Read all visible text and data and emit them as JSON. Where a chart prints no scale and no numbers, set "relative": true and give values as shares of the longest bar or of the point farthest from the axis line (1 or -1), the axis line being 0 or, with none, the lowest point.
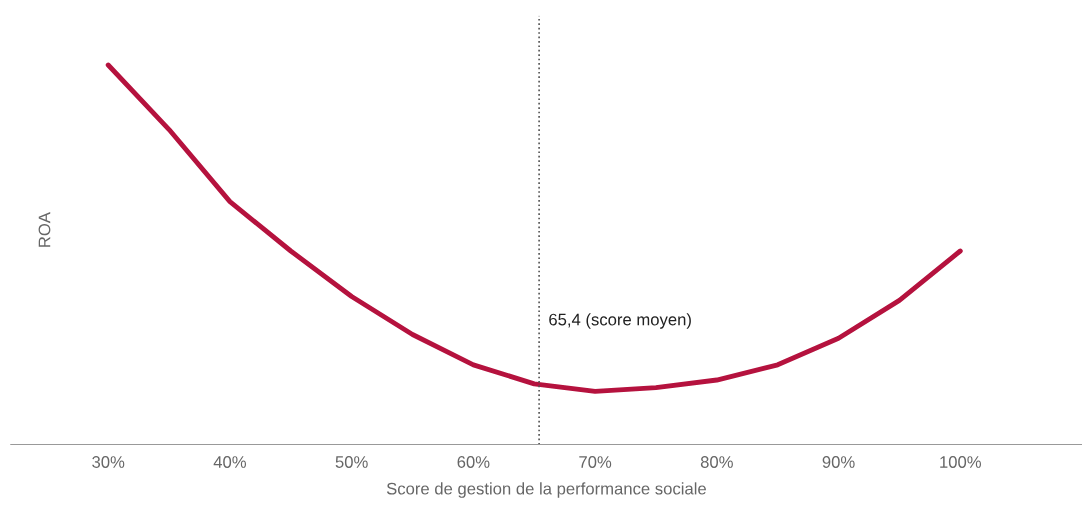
{
  "chart_data": {
    "type": "line",
    "relative": true,
    "xlabel": "Score de gestion de la performance sociale",
    "ylabel": "ROA",
    "x": [
      30,
      35,
      40,
      45,
      50,
      55,
      60,
      65,
      70,
      75,
      80,
      85,
      90,
      95,
      100
    ],
    "series": [
      {
        "color": "#b5123e",
        "values": [
          1.0,
          0.83,
          0.64,
          0.51,
          0.39,
          0.29,
          0.21,
          0.16,
          0.14,
          0.15,
          0.17,
          0.21,
          0.28,
          0.38,
          0.51
        ]
      }
    ],
    "xlim": [
      22,
      110
    ],
    "xticks": [
      {
        "value": 30,
        "label": "30%"
      },
      {
        "value": 40,
        "label": "40%"
      },
      {
        "value": 50,
        "label": "50%"
      },
      {
        "value": 60,
        "label": "60%"
      },
      {
        "value": 70,
        "label": "70%"
      },
      {
        "value": 80,
        "label": "80%"
      },
      {
        "value": 90,
        "label": "90%"
      },
      {
        "value": 100,
        "label": "100%"
      }
    ],
    "ref_lines": [
      {
        "axis": "x",
        "value": 65.4,
        "label": "65,4 (score moyen)",
        "color": "#555555",
        "line_style": "dotted"
      }
    ],
    "grid": false,
    "legend": false,
    "marker": "none",
    "line_style": "solid"
  }
}
